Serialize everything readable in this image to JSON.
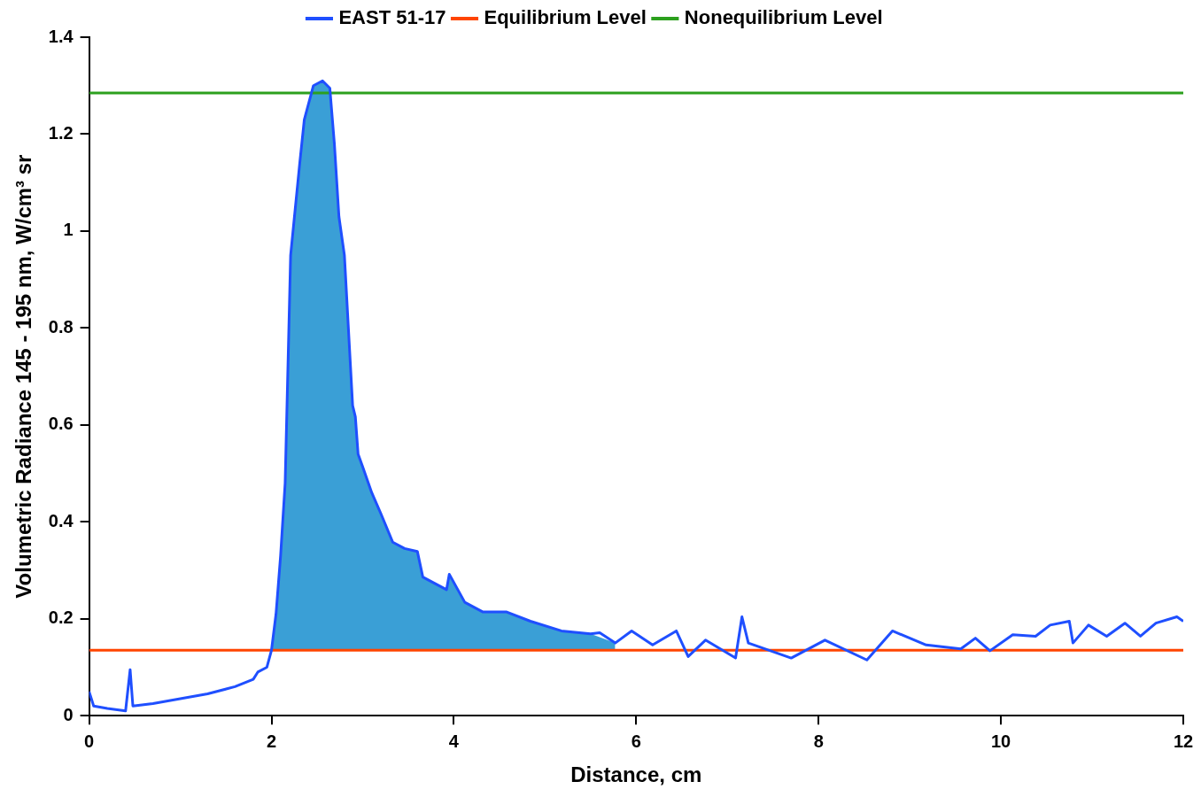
{
  "chart_data": {
    "type": "line",
    "xlabel": "Distance, cm",
    "ylabel": "Volumetric Radiance 145 - 195 nm, W/cm³ sr",
    "xlim": [
      0,
      12
    ],
    "ylim": [
      0,
      1.4
    ],
    "xticks": [
      0,
      2,
      4,
      6,
      8,
      10,
      12
    ],
    "yticks": [
      0,
      0.2,
      0.4,
      0.6,
      0.8,
      1,
      1.2,
      1.4
    ],
    "grid": false,
    "legend": "top",
    "marker": "none",
    "line_style": "solid",
    "series": [
      {
        "type": "area",
        "color": "#3a9fd6",
        "x": [
          2.0,
          2.05,
          2.1,
          2.15,
          2.21,
          2.31,
          2.36,
          2.46,
          2.56,
          2.64,
          2.69,
          2.74,
          2.8,
          2.89,
          2.92,
          2.95,
          3.0,
          3.1,
          3.2,
          3.33,
          3.46,
          3.6,
          3.66,
          3.92,
          3.95,
          4.12,
          4.32,
          4.58,
          4.84,
          5.18,
          5.5,
          5.77
        ],
        "values": [
          0.135,
          0.21,
          0.33,
          0.48,
          0.95,
          1.14,
          1.23,
          1.3,
          1.31,
          1.295,
          1.18,
          1.03,
          0.95,
          0.64,
          0.617,
          0.54,
          0.514,
          0.46,
          0.417,
          0.358,
          0.345,
          0.339,
          0.286,
          0.26,
          0.292,
          0.234,
          0.214,
          0.214,
          0.195,
          0.175,
          0.169,
          0.15
        ]
      },
      {
        "name": "EAST 51-17",
        "color": "#1f4fff",
        "x": [
          0,
          0.05,
          0.2,
          0.4,
          0.45,
          0.48,
          0.7,
          1.0,
          1.3,
          1.6,
          1.8,
          1.85,
          1.95,
          2.0,
          2.05,
          2.1,
          2.15,
          2.21,
          2.31,
          2.36,
          2.46,
          2.56,
          2.64,
          2.69,
          2.74,
          2.8,
          2.89,
          2.92,
          2.95,
          3.0,
          3.1,
          3.2,
          3.33,
          3.46,
          3.6,
          3.66,
          3.92,
          3.95,
          4.12,
          4.32,
          4.58,
          4.84,
          5.18,
          5.5,
          5.6,
          5.77,
          5.95,
          6.18,
          6.44,
          6.57,
          6.76,
          7.09,
          7.16,
          7.23,
          7.7,
          8.07,
          8.53,
          8.81,
          9.18,
          9.56,
          9.72,
          9.88,
          10.13,
          10.38,
          10.54,
          10.75,
          10.79,
          10.96,
          11.16,
          11.36,
          11.53,
          11.7,
          11.93,
          12
        ],
        "values": [
          0.05,
          0.02,
          0.015,
          0.01,
          0.095,
          0.02,
          0.025,
          0.035,
          0.045,
          0.06,
          0.075,
          0.09,
          0.1,
          0.135,
          0.21,
          0.33,
          0.48,
          0.95,
          1.14,
          1.23,
          1.3,
          1.31,
          1.295,
          1.18,
          1.03,
          0.95,
          0.64,
          0.617,
          0.54,
          0.514,
          0.46,
          0.417,
          0.358,
          0.345,
          0.339,
          0.286,
          0.26,
          0.292,
          0.234,
          0.214,
          0.214,
          0.195,
          0.175,
          0.169,
          0.171,
          0.15,
          0.175,
          0.146,
          0.175,
          0.122,
          0.156,
          0.119,
          0.204,
          0.15,
          0.119,
          0.156,
          0.115,
          0.175,
          0.146,
          0.138,
          0.16,
          0.134,
          0.167,
          0.164,
          0.187,
          0.195,
          0.15,
          0.187,
          0.164,
          0.191,
          0.164,
          0.191,
          0.204,
          0.195
        ]
      },
      {
        "name": "Equilibrium Level",
        "color": "#ff4500",
        "x": [
          0,
          12
        ],
        "values": [
          0.135,
          0.135
        ]
      },
      {
        "name": "Nonequilibrium Level",
        "color": "#2ca01e",
        "x": [
          0,
          12
        ],
        "values": [
          1.285,
          1.285
        ]
      }
    ]
  }
}
